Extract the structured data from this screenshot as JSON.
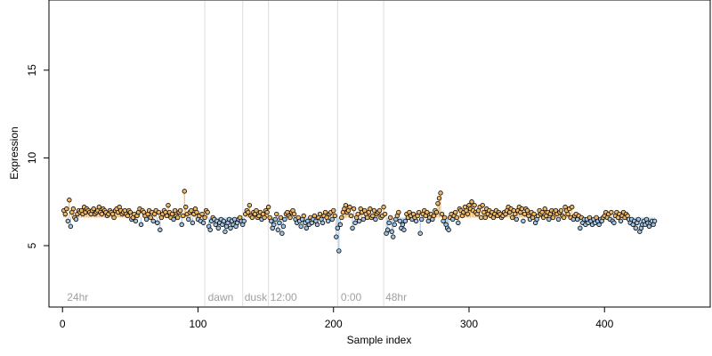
{
  "chart_data": {
    "type": "scatter",
    "title": "",
    "xlabel": "Sample index",
    "ylabel": "Expression",
    "xlim": [
      -10,
      478
    ],
    "ylim": [
      1.5,
      19.0
    ],
    "xticks": [
      0,
      100,
      200,
      300,
      400
    ],
    "yticks": [
      5,
      10,
      15
    ],
    "baseline": 6.6,
    "colors": {
      "above": "#f3b45a",
      "below": "#9ec3e6",
      "vline": "#dcdcdc",
      "point_stroke": "#000000",
      "annotation": "#a0a0a0"
    },
    "annotations": [
      {
        "label": "24hr",
        "x": 2
      },
      {
        "label": "dawn",
        "x": 106
      },
      {
        "label": "dusk",
        "x": 133
      },
      {
        "label": "12:00",
        "x": 152
      },
      {
        "label": "0:00",
        "x": 204
      },
      {
        "label": "48hr",
        "x": 237
      }
    ],
    "vlines": [
      105,
      133,
      152,
      203,
      237
    ],
    "points": [
      7.0,
      6.8,
      7.1,
      6.4,
      7.6,
      6.1,
      6.9,
      7.1,
      6.6,
      6.5,
      6.8,
      7.0,
      6.9,
      7.0,
      6.8,
      7.2,
      6.9,
      7.1,
      7.0,
      6.9,
      6.8,
      7.0,
      7.1,
      6.8,
      6.9,
      7.0,
      7.2,
      6.9,
      6.8,
      7.1,
      7.0,
      6.9,
      6.7,
      6.8,
      7.0,
      6.9,
      6.8,
      6.6,
      7.0,
      7.1,
      6.9,
      7.2,
      7.0,
      6.8,
      6.9,
      7.0,
      6.8,
      6.7,
      7.0,
      6.9,
      6.5,
      6.6,
      6.8,
      6.4,
      6.7,
      6.9,
      7.1,
      6.2,
      7.0,
      6.9,
      6.7,
      6.5,
      6.8,
      7.0,
      6.6,
      6.9,
      6.4,
      6.8,
      7.0,
      6.3,
      6.9,
      5.9,
      6.6,
      6.8,
      7.0,
      6.9,
      6.7,
      7.3,
      6.9,
      6.6,
      6.8,
      6.5,
      7.0,
      6.7,
      6.6,
      6.9,
      7.0,
      6.2,
      6.7,
      8.1,
      7.2,
      6.8,
      6.5,
      6.9,
      7.0,
      6.3,
      6.8,
      7.1,
      6.9,
      6.5,
      6.7,
      6.4,
      6.8,
      6.3,
      6.6,
      7.0,
      6.9,
      6.1,
      5.9,
      6.4,
      6.6,
      6.5,
      6.2,
      6.4,
      6.0,
      6.3,
      6.5,
      6.2,
      6.4,
      5.8,
      6.1,
      6.3,
      6.5,
      6.0,
      6.4,
      6.2,
      6.5,
      6.1,
      6.3,
      6.5,
      6.6,
      6.4,
      6.2,
      6.4,
      6.8,
      7.0,
      6.9,
      7.3,
      6.7,
      6.6,
      6.9,
      6.8,
      7.0,
      6.6,
      6.7,
      6.9,
      6.5,
      6.8,
      6.6,
      7.0,
      6.9,
      7.2,
      6.6,
      6.4,
      6.0,
      6.2,
      6.5,
      6.8,
      5.9,
      6.3,
      6.6,
      5.7,
      6.1,
      6.5,
      6.8,
      6.9,
      6.7,
      6.6,
      6.9,
      7.0,
      6.8,
      6.5,
      6.3,
      6.6,
      6.4,
      6.1,
      6.5,
      6.7,
      6.3,
      6.0,
      6.4,
      6.2,
      6.6,
      6.3,
      6.5,
      6.7,
      6.4,
      6.2,
      6.6,
      6.8,
      6.5,
      6.3,
      6.7,
      6.9,
      6.6,
      6.4,
      6.8,
      6.9,
      6.5,
      7.0,
      6.7,
      5.5,
      6.0,
      4.7,
      6.2,
      6.6,
      6.9,
      7.1,
      7.3,
      6.9,
      7.0,
      7.2,
      6.7,
      6.0,
      7.1,
      6.3,
      6.6,
      6.8,
      6.4,
      7.1,
      6.9,
      6.5,
      7.0,
      6.8,
      6.6,
      6.9,
      7.1,
      6.6,
      6.7,
      7.0,
      6.5,
      6.8,
      6.9,
      7.0,
      6.6,
      6.7,
      7.2,
      6.8,
      5.7,
      5.9,
      6.3,
      6.6,
      5.8,
      5.5,
      6.2,
      6.5,
      6.7,
      6.9,
      6.4,
      6.0,
      6.2,
      5.9,
      6.4,
      6.8,
      6.6,
      6.9,
      6.7,
      6.5,
      6.8,
      6.6,
      6.4,
      6.7,
      6.9,
      5.7,
      6.5,
      6.8,
      7.0,
      6.7,
      6.9,
      6.4,
      6.6,
      6.8,
      6.5,
      6.7,
      7.0,
      6.9,
      7.4,
      7.7,
      8.0,
      6.8,
      6.4,
      6.6,
      6.2,
      6.0,
      5.9,
      6.6,
      6.8,
      6.5,
      6.7,
      6.9,
      6.6,
      6.3,
      7.1,
      7.0,
      6.7,
      6.9,
      7.2,
      7.0,
      6.8,
      7.3,
      7.1,
      7.5,
      7.0,
      7.3,
      6.9,
      6.8,
      7.0,
      7.2,
      6.6,
      7.3,
      6.9,
      6.6,
      7.1,
      6.8,
      7.0,
      6.7,
      6.9,
      6.6,
      6.8,
      7.0,
      6.7,
      6.9,
      6.8,
      6.6,
      6.7,
      6.9,
      6.8,
      7.0,
      7.2,
      6.9,
      7.1,
      6.6,
      7.0,
      6.8,
      6.5,
      7.0,
      7.2,
      6.9,
      7.1,
      6.4,
      6.8,
      7.1,
      7.0,
      6.7,
      6.5,
      6.9,
      6.6,
      6.8,
      6.3,
      6.5,
      6.7,
      7.0,
      6.8,
      6.9,
      6.6,
      7.1,
      6.7,
      6.9,
      6.5,
      6.8,
      7.0,
      6.6,
      6.9,
      7.0,
      6.8,
      6.5,
      6.9,
      7.0,
      6.7,
      6.6,
      7.2,
      7.0,
      6.8,
      7.1,
      6.6,
      7.2,
      6.5,
      6.7,
      6.8,
      6.5,
      6.7,
      6.0,
      6.6,
      6.3,
      6.5,
      6.2,
      6.5,
      6.3,
      6.6,
      6.4,
      6.2,
      6.5,
      6.3,
      6.6,
      6.4,
      6.2,
      6.5,
      6.4,
      6.6,
      6.7,
      6.9,
      6.6,
      6.8,
      6.5,
      6.9,
      6.4,
      6.3,
      6.7,
      6.9,
      6.6,
      6.8,
      6.4,
      6.7,
      6.9,
      6.6,
      6.8,
      6.7,
      6.5,
      6.3,
      6.5,
      6.2,
      6.4,
      6.0,
      6.3,
      6.5,
      5.8,
      6.0,
      6.2,
      6.4,
      6.2,
      6.5,
      6.3,
      6.1,
      6.3,
      6.4,
      6.2,
      6.4
    ]
  }
}
